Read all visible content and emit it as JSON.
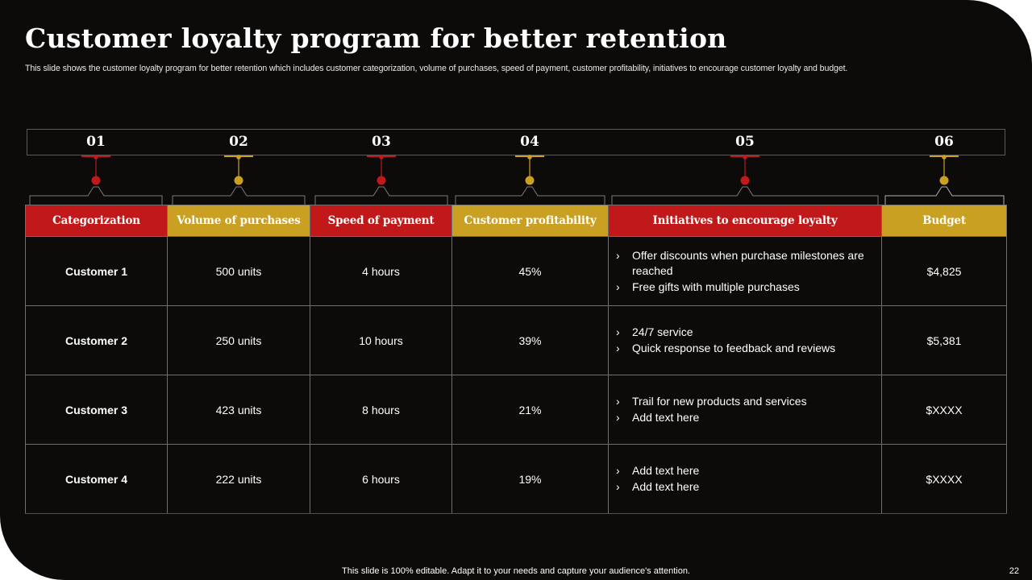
{
  "title": "Customer loyalty program for better retention",
  "subtitle": "This slide shows the customer loyalty program for better retention which includes customer categorization, volume of purchases, speed of payment, customer profitability, initiatives to encourage customer loyalty and budget.",
  "colors": {
    "red": "#c1191a",
    "gold": "#c9a021",
    "background": "#0c0b0a"
  },
  "numbers": [
    "01",
    "02",
    "03",
    "04",
    "05",
    "06"
  ],
  "headers": [
    "Categorization",
    "Volume of purchases",
    "Speed of payment",
    "Customer profitability",
    "Initiatives to encourage loyalty",
    "Budget"
  ],
  "rows": [
    {
      "customer": "Customer 1",
      "volume": "500 units",
      "speed": "4 hours",
      "profit": "45%",
      "initiatives": [
        "Offer discounts when purchase milestones are reached",
        "Free gifts with multiple purchases"
      ],
      "budget": "$4,825"
    },
    {
      "customer": "Customer 2",
      "volume": "250 units",
      "speed": "10 hours",
      "profit": "39%",
      "initiatives": [
        "24/7 service",
        "Quick response to feedback and reviews"
      ],
      "budget": "$5,381"
    },
    {
      "customer": "Customer 3",
      "volume": "423 units",
      "speed": "8 hours",
      "profit": "21%",
      "initiatives": [
        "Trail for new products and services",
        "Add text here"
      ],
      "budget": "$XXXX"
    },
    {
      "customer": "Customer 4",
      "volume": "222 units",
      "speed": "6 hours",
      "profit": "19%",
      "initiatives": [
        "Add text here",
        "Add text here"
      ],
      "budget": "$XXXX"
    }
  ],
  "footer": "This slide is 100% editable. Adapt it to your needs and capture your audience's attention.",
  "page_number": "22"
}
